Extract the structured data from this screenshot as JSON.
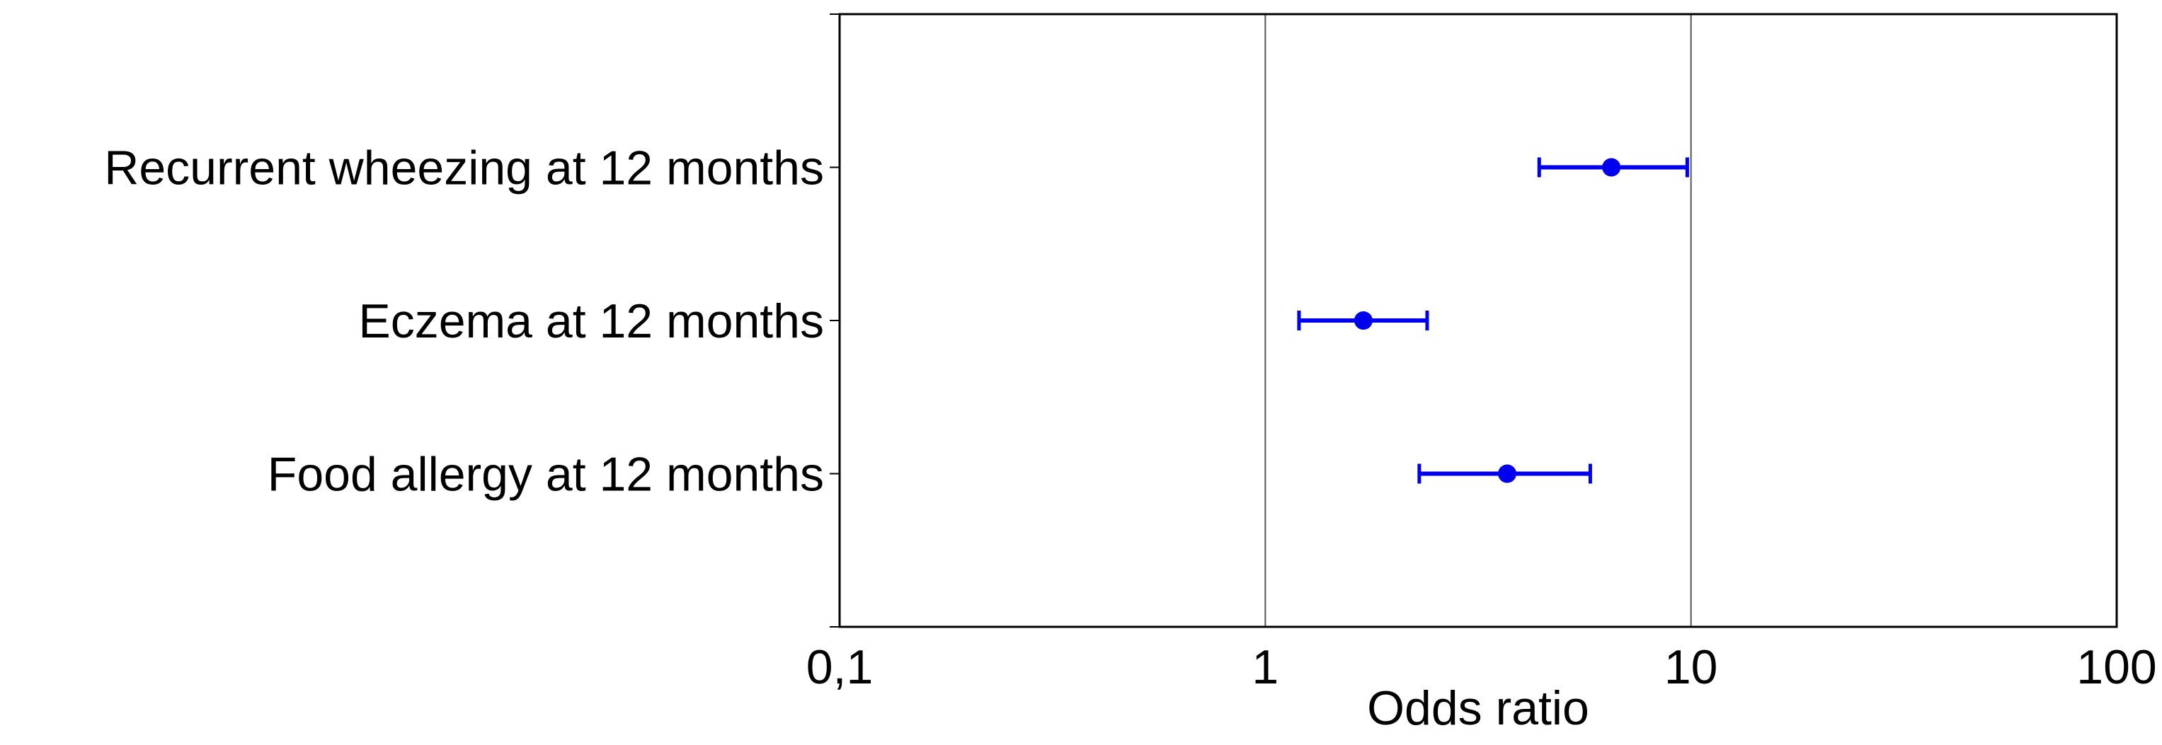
{
  "chart_data": {
    "type": "scatter",
    "title": "",
    "xlabel": "Odds ratio",
    "ylabel": "",
    "x_scale": "log",
    "xlim": [
      0.1,
      100
    ],
    "x_ticks": [
      {
        "value": 0.1,
        "label": "0,1"
      },
      {
        "value": 1,
        "label": "1"
      },
      {
        "value": 10,
        "label": "10"
      },
      {
        "value": 100,
        "label": "100"
      }
    ],
    "gridlines": [
      1,
      10
    ],
    "categories": [
      "Recurrent wheezing at 12 months",
      "Eczema at 12 months",
      "Food allergy at 12 months"
    ],
    "series": [
      {
        "color": "#0000ee",
        "points": [
          {
            "estimate": 6.5,
            "lower": 4.4,
            "upper": 9.8
          },
          {
            "estimate": 1.7,
            "lower": 1.2,
            "upper": 2.4
          },
          {
            "estimate": 3.7,
            "lower": 2.3,
            "upper": 5.8
          }
        ]
      }
    ]
  }
}
